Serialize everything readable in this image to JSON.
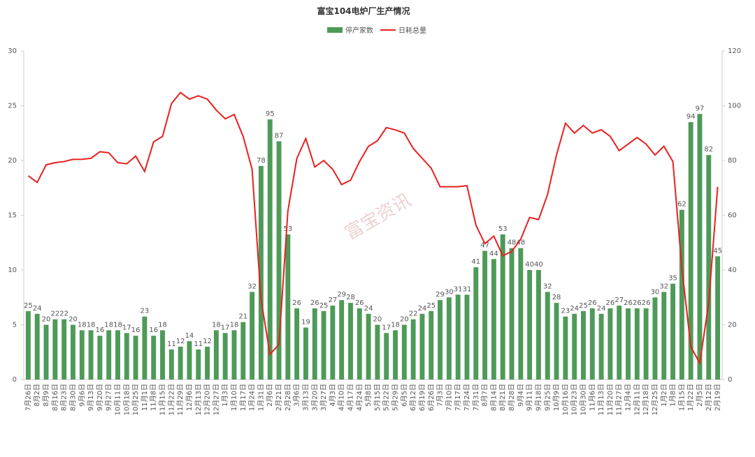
{
  "chart_data": {
    "type": "bar_line",
    "title": "富宝104电炉厂生产情况",
    "watermark": "富宝资讯",
    "categories": [
      "7月26日",
      "8月2日",
      "8月9日",
      "8月16日",
      "8月23日",
      "8月30日",
      "9月6日",
      "9月13日",
      "9月20日",
      "9月27日",
      "10月11日",
      "10月18日",
      "10月25日",
      "11月1日",
      "11月8日",
      "11月15日",
      "11月22日",
      "11月29日",
      "12月6日",
      "12月13日",
      "12月20日",
      "12月27日",
      "1月3日",
      "1月10日",
      "1月17日",
      "1月24日",
      "1月31日",
      "2月6日",
      "2月21日",
      "2月28日",
      "3月6日",
      "3月13日",
      "3月20日",
      "3月27日",
      "4月3日",
      "4月10日",
      "4月17日",
      "4月24日",
      "5月8日",
      "5月15日",
      "5月22日",
      "5月29日",
      "6月5日",
      "6月12日",
      "6月19日",
      "6月26日",
      "7月3日",
      "7月10日",
      "7月17日",
      "7月24日",
      "7月31日",
      "8月7日",
      "8月14日",
      "8月21日",
      "8月28日",
      "9月4日",
      "9月11日",
      "9月18日",
      "9月25日",
      "10月9日",
      "10月16日",
      "10月23日",
      "10月30日",
      "11月6日",
      "11月13日",
      "11月20日",
      "11月27日",
      "12月4日",
      "12月11日",
      "12月18日",
      "12月25日",
      "1月2日",
      "1月8日",
      "1月15日",
      "1月22日",
      "2月5日",
      "2月12日",
      "2月19日"
    ],
    "series": [
      {
        "name": "停产家数",
        "type": "bar",
        "axis": "y2",
        "color": "#4e9a58",
        "values": [
          25,
          24,
          20,
          22,
          22,
          20,
          18,
          18,
          16,
          18,
          18,
          17,
          16,
          23,
          16,
          18,
          11,
          12,
          14,
          11,
          12,
          18,
          17,
          18,
          21,
          32,
          78,
          95,
          87,
          53,
          26,
          19,
          26,
          25,
          27,
          29,
          28,
          26,
          24,
          20,
          17,
          18,
          20,
          22,
          24,
          25,
          29,
          30,
          31,
          31,
          41,
          47,
          44,
          53,
          48,
          48,
          40,
          40,
          32,
          28,
          23,
          24,
          25,
          26,
          24,
          26,
          27,
          26,
          26,
          26,
          30,
          32,
          35,
          62,
          94,
          97,
          82,
          45
        ]
      },
      {
        "name": "日耗总量",
        "type": "line",
        "axis": "y",
        "color": "#e8201e",
        "values": [
          18.6,
          18.0,
          19.6,
          19.8,
          19.9,
          20.1,
          20.1,
          20.2,
          20.8,
          20.7,
          19.8,
          19.7,
          20.4,
          19.0,
          21.7,
          22.2,
          25.2,
          26.2,
          25.6,
          25.9,
          25.6,
          24.6,
          23.8,
          24.2,
          22.2,
          19.2,
          7.3,
          2.3,
          3.2,
          15.4,
          20.2,
          22.0,
          19.4,
          20.0,
          19.2,
          17.8,
          18.2,
          19.9,
          21.3,
          21.8,
          23.0,
          22.8,
          22.5,
          21.1,
          20.2,
          19.3,
          17.6,
          17.6,
          17.6,
          17.7,
          14.1,
          12.4,
          13.1,
          11.3,
          11.7,
          12.8,
          14.8,
          14.6,
          16.9,
          20.5,
          23.4,
          22.5,
          23.2,
          22.5,
          22.8,
          22.2,
          20.9,
          21.5,
          22.1,
          21.5,
          20.5,
          21.3,
          19.9,
          10.2,
          3.0,
          1.5,
          7.0,
          17.6
        ]
      }
    ],
    "ylim": [
      0,
      30
    ],
    "yticks": [
      0,
      5,
      10,
      15,
      20,
      25,
      30
    ],
    "y2lim": [
      0,
      120
    ],
    "y2ticks": [
      0,
      20,
      40,
      60,
      80,
      100,
      120
    ],
    "grid": false,
    "legend": "top"
  }
}
